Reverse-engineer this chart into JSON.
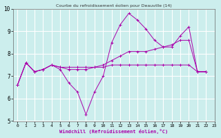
{
  "title": "Courbe du refroidissement éolien pour Deauville (14)",
  "xlabel": "Windchill (Refroidissement éolien,°C)",
  "bg_color": "#cceeed",
  "grid_color": "#ffffff",
  "line_color": "#aa00aa",
  "xlim": [
    -0.5,
    23
  ],
  "ylim": [
    5,
    10
  ],
  "xticks": [
    0,
    1,
    2,
    3,
    4,
    5,
    6,
    7,
    8,
    9,
    10,
    11,
    12,
    13,
    14,
    15,
    16,
    17,
    18,
    19,
    20,
    21,
    22,
    23
  ],
  "yticks": [
    5,
    6,
    7,
    8,
    9,
    10
  ],
  "x_values": [
    0,
    1,
    2,
    3,
    4,
    5,
    6,
    7,
    8,
    9,
    10,
    11,
    12,
    13,
    14,
    15,
    16,
    17,
    18,
    19,
    20,
    21,
    22
  ],
  "series": [
    [
      6.6,
      7.6,
      7.2,
      7.3,
      7.5,
      7.3,
      6.7,
      6.3,
      5.3,
      6.3,
      7.0,
      8.5,
      9.3,
      9.8,
      9.5,
      9.1,
      8.6,
      8.3,
      8.3,
      8.8,
      9.2,
      7.2,
      7.2
    ],
    [
      6.6,
      7.6,
      7.2,
      7.3,
      7.5,
      7.4,
      7.3,
      7.3,
      7.3,
      7.4,
      7.5,
      7.7,
      7.9,
      8.1,
      8.1,
      8.1,
      8.2,
      8.3,
      8.4,
      8.6,
      8.6,
      7.2,
      7.2
    ],
    [
      6.6,
      7.6,
      7.2,
      7.3,
      7.5,
      7.4,
      7.4,
      7.4,
      7.4,
      7.4,
      7.4,
      7.5,
      7.5,
      7.5,
      7.5,
      7.5,
      7.5,
      7.5,
      7.5,
      7.5,
      7.5,
      7.2,
      7.2
    ]
  ]
}
